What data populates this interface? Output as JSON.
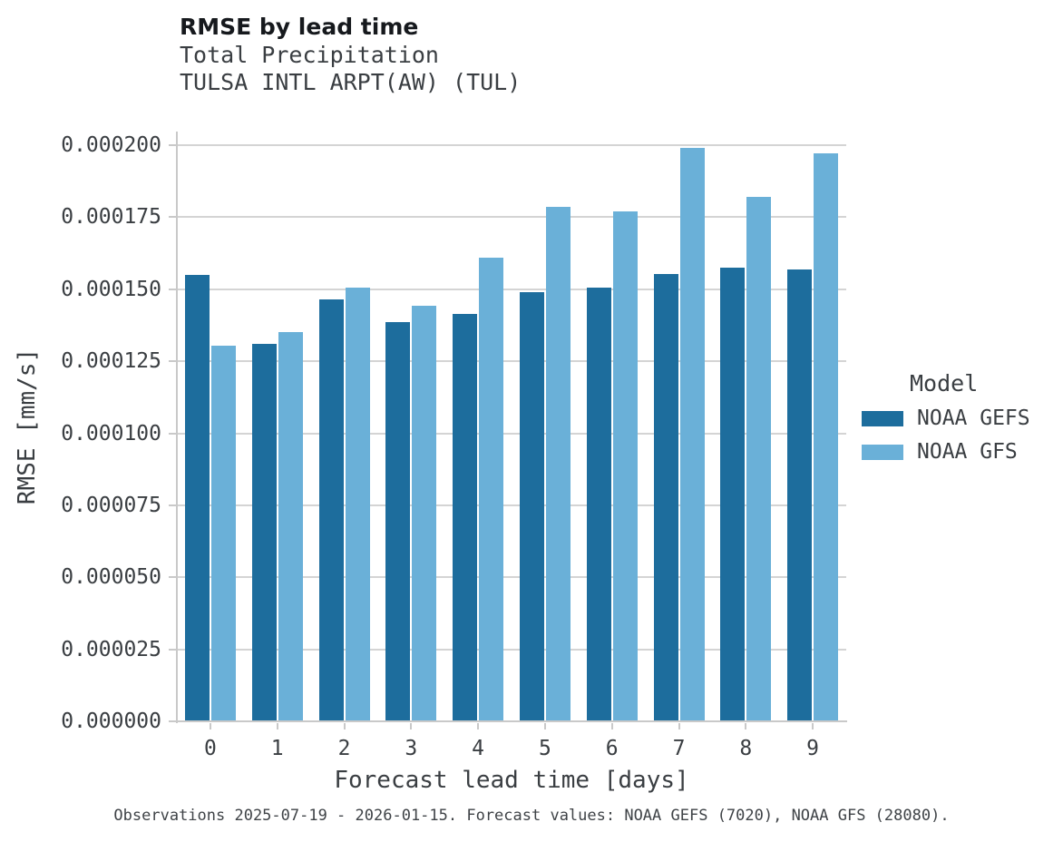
{
  "chart": {
    "title": "RMSE by lead time",
    "subtitles": [
      "Total Precipitation",
      "TULSA INTL ARPT(AW) (TUL)"
    ],
    "xlabel": "Forecast lead time [days]",
    "ylabel": "RMSE [mm/s]",
    "legend_title": "Model",
    "caption": "Observations 2025-07-19 - 2026-01-15. Forecast values: NOAA GEFS (7020), NOAA GFS (28080)."
  },
  "chart_data": {
    "type": "bar",
    "title": "RMSE by lead time",
    "subtitle": "Total Precipitation",
    "station": "TULSA INTL ARPT(AW) (TUL)",
    "xlabel": "Forecast lead time [days]",
    "ylabel": "RMSE [mm/s]",
    "categories": [
      0,
      1,
      2,
      3,
      4,
      5,
      6,
      7,
      8,
      9
    ],
    "series": [
      {
        "name": "NOAA GEFS",
        "color": "#1d6d9d",
        "values": [
          0.000155,
          0.000131,
          0.0001463,
          0.0001385,
          0.0001413,
          0.000149,
          0.0001505,
          0.0001553,
          0.0001575,
          0.0001567
        ]
      },
      {
        "name": "NOAA GFS",
        "color": "#6ab0d8",
        "values": [
          0.0001305,
          0.000135,
          0.0001505,
          0.0001443,
          0.000161,
          0.0001785,
          0.000177,
          0.000199,
          0.000182,
          0.0001972
        ]
      }
    ],
    "ylim": [
      0,
      0.0002
    ],
    "ytick_values": [
      0,
      2.5e-05,
      5e-05,
      7.5e-05,
      0.0001,
      0.000125,
      0.00015,
      0.000175,
      0.0002
    ],
    "ytick_labels": [
      "0.000000",
      "0.000025",
      "0.000050",
      "0.000075",
      "0.000100",
      "0.000125",
      "0.000150",
      "0.000175",
      "0.000200"
    ],
    "xtick_labels": [
      "0",
      "1",
      "2",
      "3",
      "4",
      "5",
      "6",
      "7",
      "8",
      "9"
    ],
    "grid": true,
    "legend_title": "Model",
    "legend_position": "right",
    "bar_colors": {
      "accent_dark": "#1d6d9d",
      "accent_light": "#6ab0d8"
    },
    "grid_color": "#d4d4d4",
    "axis_color": "#c9c9c9"
  }
}
